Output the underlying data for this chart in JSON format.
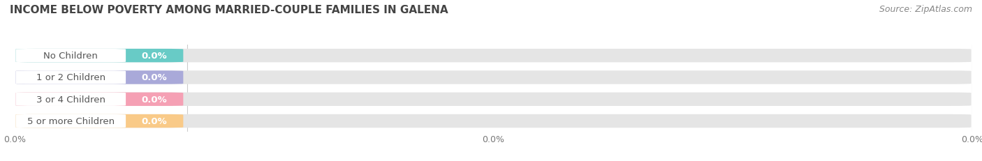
{
  "title": "INCOME BELOW POVERTY AMONG MARRIED-COUPLE FAMILIES IN GALENA",
  "source": "Source: ZipAtlas.com",
  "categories": [
    "No Children",
    "1 or 2 Children",
    "3 or 4 Children",
    "5 or more Children"
  ],
  "values": [
    0.0,
    0.0,
    0.0,
    0.0
  ],
  "bar_colors": [
    "#68cbc6",
    "#a9a9d9",
    "#f5a0b4",
    "#f9ca88"
  ],
  "bar_bg_color": "#e5e5e5",
  "background_color": "#ffffff",
  "title_fontsize": 11,
  "label_fontsize": 9.5,
  "value_fontsize": 9.5,
  "tick_fontsize": 9,
  "source_fontsize": 9,
  "bar_height": 0.62,
  "n_bars": 4,
  "x_tick_positions": [
    0.0,
    0.5,
    1.0
  ],
  "x_tick_labels": [
    "0.0%",
    "0.0%",
    "0.0%"
  ]
}
